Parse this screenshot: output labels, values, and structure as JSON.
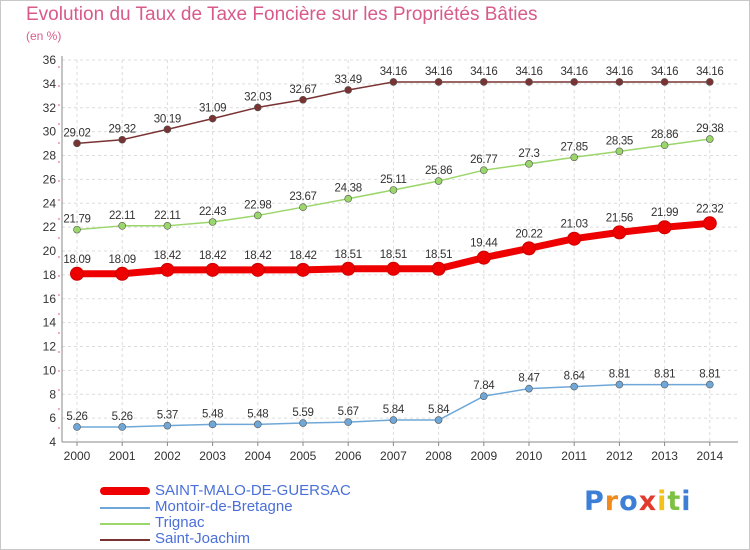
{
  "title": "Evolution du Taux de Taxe Foncière sur les Propriétés Bâties",
  "subtitle": "(en %)",
  "logo": "Proxiti",
  "chart_data": {
    "type": "line",
    "title": "Evolution du Taux de Taxe Foncière sur les Propriétés Bâties",
    "ylabel": "(en %)",
    "ylim": [
      4,
      36
    ],
    "yticks": [
      4,
      6,
      8,
      10,
      12,
      14,
      16,
      18,
      20,
      22,
      24,
      26,
      28,
      30,
      32,
      34,
      36
    ],
    "grid": true,
    "legend_position": "bottom-left",
    "categories": [
      "2000",
      "2001",
      "2002",
      "2003",
      "2004",
      "2005",
      "2006",
      "2007",
      "2008",
      "2009",
      "2010",
      "2011",
      "2012",
      "2013",
      "2014"
    ],
    "series": [
      {
        "name": "SAINT-MALO-DE-GUERSAC",
        "color": "#ee0000",
        "values": [
          18.09,
          18.09,
          18.42,
          18.42,
          18.42,
          18.42,
          18.51,
          18.51,
          18.51,
          19.44,
          20.22,
          21.03,
          21.56,
          21.99,
          22.32
        ],
        "labels": [
          "18.09",
          "18.09",
          "18.42",
          "18.42",
          "18.42",
          "18.42",
          "18.51",
          "18.51",
          "18.51",
          "19.44",
          "20.22",
          "21.03",
          "21.56",
          "21.99",
          "22.32"
        ]
      },
      {
        "name": "Montoir-de-Bretagne",
        "color": "#6fa8d8",
        "values": [
          5.26,
          5.26,
          5.37,
          5.48,
          5.48,
          5.59,
          5.67,
          5.84,
          5.84,
          7.84,
          8.47,
          8.64,
          8.81,
          8.81,
          8.81
        ],
        "labels": [
          "5.26",
          "5.26",
          "5.37",
          "5.48",
          "5.48",
          "5.59",
          "5.67",
          "5.84",
          "5.84",
          "7.84",
          "8.47",
          "8.64",
          "8.81",
          "8.81",
          "8.81"
        ]
      },
      {
        "name": "Trignac",
        "color": "#9ad66a",
        "values": [
          21.79,
          22.11,
          22.11,
          22.43,
          22.98,
          23.67,
          24.38,
          25.11,
          25.86,
          26.77,
          27.3,
          27.85,
          28.35,
          28.86,
          29.38
        ],
        "labels": [
          "21.79",
          "22.11",
          "22.11",
          "22.43",
          "22.98",
          "23.67",
          "24.38",
          "25.11",
          "25.86",
          "26.77",
          "27.3",
          "27.85",
          "28.35",
          "28.86",
          "29.38"
        ]
      },
      {
        "name": "Saint-Joachim",
        "color": "#7a3333",
        "values": [
          29.02,
          29.32,
          30.19,
          31.09,
          32.03,
          32.67,
          33.49,
          34.16,
          34.16,
          34.16,
          34.16,
          34.16,
          34.16,
          34.16,
          34.16
        ],
        "labels": [
          "29.02",
          "29.32",
          "30.19",
          "31.09",
          "32.03",
          "32.67",
          "33.49",
          "34.16",
          "34.16",
          "34.16",
          "34.16",
          "34.16",
          "34.16",
          "34.16",
          "34.16"
        ]
      }
    ]
  }
}
